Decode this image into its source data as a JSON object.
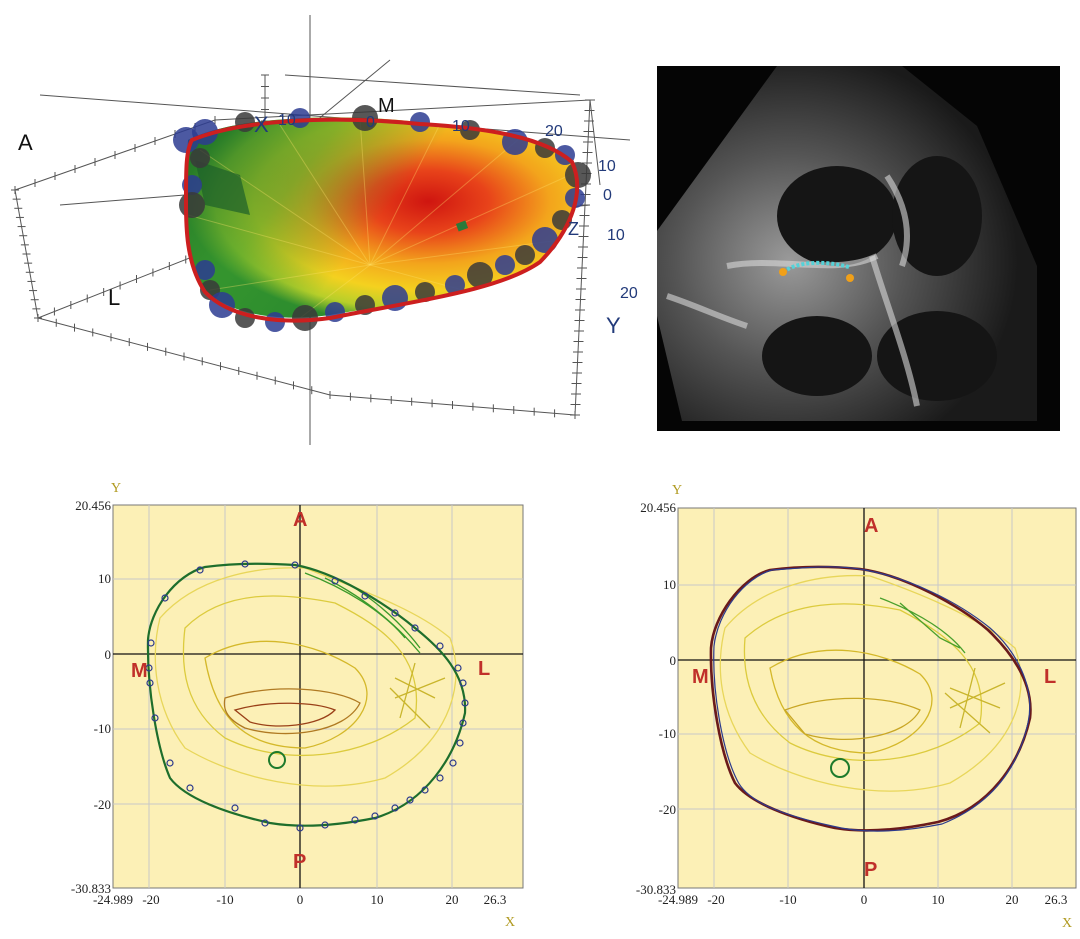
{
  "panel_3d": {
    "labels": {
      "a": "A",
      "m": "M",
      "l": "L",
      "x": "X",
      "y": "Y",
      "z": "Z"
    },
    "ticks": {
      "x": [
        "10",
        "0",
        "10",
        "20"
      ],
      "y": [
        "10",
        "0",
        "10",
        "20"
      ]
    },
    "colors": {
      "outline": "#cc1f1f",
      "marker": "#2d3c92",
      "surface_hot": "#d41a10",
      "surface_mid": "#f4c81b",
      "surface_cool": "#2a8a2a"
    }
  },
  "panel_echo": {
    "colors": {
      "annulus_trace": "#55d2d8",
      "endpoint": "#f0a019"
    }
  },
  "contour_left": {
    "axis_y_label": "Y",
    "axis_x_label": "X",
    "y_ticks": [
      "20.456",
      "10",
      "0",
      "-10",
      "-20",
      "-30.833"
    ],
    "x_ticks": [
      "-24.989",
      "-20",
      "-10",
      "0",
      "10",
      "20",
      "26.3"
    ],
    "orientation": {
      "top": "A",
      "bottom": "P",
      "left": "M",
      "right": "L"
    },
    "colors": {
      "background": "#fcf0b6",
      "outline": "#1e6e2c",
      "points": "#2c3a8c",
      "orientation": "#c0302a"
    }
  },
  "contour_right": {
    "axis_y_label": "Y",
    "axis_x_label": "X",
    "y_ticks": [
      "20.456",
      "10",
      "0",
      "-10",
      "-20",
      "-30.833"
    ],
    "x_ticks": [
      "-24.989",
      "-20",
      "-10",
      "0",
      "10",
      "20",
      "26.3"
    ],
    "orientation": {
      "top": "A",
      "bottom": "P",
      "left": "M",
      "right": "L"
    },
    "colors": {
      "background": "#fcf0b6",
      "outline": "#6b1a1a",
      "points": "#2c3a8c",
      "orientation": "#c0302a"
    }
  }
}
